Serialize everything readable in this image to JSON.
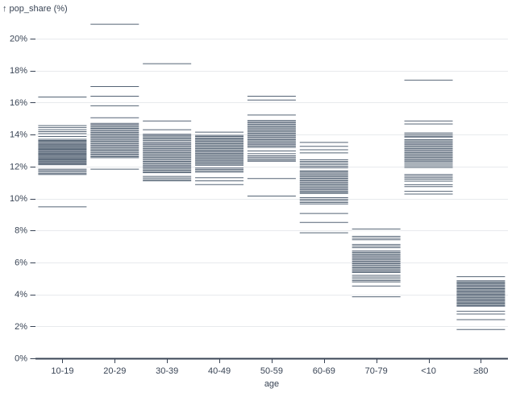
{
  "chart": {
    "ylabel_display": "↑ pop_share (%)",
    "xlabel": "age"
  },
  "colors": {
    "tick_color": "#142840",
    "tick_opacity": 0.72,
    "grid_color": "#e8eaed",
    "axis_color": "#394455",
    "text_color": "#394455",
    "background": "#ffffff"
  },
  "chart_data": {
    "type": "scatter",
    "mark": "tick",
    "title": "",
    "xlabel": "age",
    "ylabel": "pop_share (%)",
    "ylim": [
      0,
      21
    ],
    "yticks": [
      0,
      2,
      4,
      6,
      8,
      10,
      12,
      14,
      16,
      18,
      20
    ],
    "ytick_labels": [
      "0%",
      "2%",
      "4%",
      "6%",
      "8%",
      "10%",
      "12%",
      "14%",
      "16%",
      "18%",
      "20%"
    ],
    "grid": true,
    "legend": "none",
    "categories": [
      "10-19",
      "20-29",
      "30-39",
      "40-49",
      "50-59",
      "60-69",
      "70-79",
      "<10",
      "≥80"
    ],
    "series": [
      {
        "category": "10-19",
        "values": [
          16.35,
          14.56,
          14.44,
          14.3,
          14.18,
          14.06,
          13.88,
          13.7,
          13.63,
          13.57,
          13.5,
          13.44,
          13.37,
          13.31,
          13.25,
          13.19,
          13.13,
          13.07,
          13.01,
          12.95,
          12.89,
          12.83,
          12.77,
          12.71,
          12.65,
          12.59,
          12.53,
          12.47,
          12.41,
          12.35,
          12.29,
          12.23,
          12.17,
          12.11,
          11.83,
          11.75,
          11.66,
          11.57,
          11.5,
          9.48
        ]
      },
      {
        "category": "20-29",
        "values": [
          20.9,
          17.0,
          16.4,
          15.8,
          15.05,
          14.7,
          14.62,
          14.54,
          14.46,
          14.38,
          14.3,
          14.22,
          14.14,
          14.06,
          13.98,
          13.9,
          13.82,
          13.74,
          13.66,
          13.58,
          13.5,
          13.42,
          13.34,
          13.26,
          13.18,
          13.1,
          13.02,
          12.94,
          12.86,
          12.78,
          12.7,
          12.62,
          12.55,
          11.83
        ]
      },
      {
        "category": "30-39",
        "values": [
          18.43,
          14.85,
          14.3,
          14.02,
          13.94,
          13.86,
          13.78,
          13.7,
          13.62,
          13.52,
          13.44,
          13.36,
          13.28,
          13.2,
          13.12,
          13.04,
          12.96,
          12.88,
          12.8,
          12.72,
          12.64,
          12.56,
          12.48,
          12.4,
          12.32,
          12.24,
          12.16,
          12.08,
          12.0,
          11.92,
          11.84,
          11.76,
          11.68,
          11.61,
          11.38,
          11.28,
          11.18,
          11.1
        ]
      },
      {
        "category": "40-49",
        "values": [
          14.15,
          13.95,
          13.88,
          13.8,
          13.73,
          13.65,
          13.58,
          13.5,
          13.43,
          13.35,
          13.28,
          13.2,
          13.13,
          13.05,
          12.98,
          12.9,
          12.83,
          12.75,
          12.68,
          12.6,
          12.53,
          12.45,
          12.38,
          12.3,
          12.23,
          12.15,
          12.08,
          11.9,
          11.82,
          11.73,
          11.65,
          11.3,
          11.1,
          10.87
        ]
      },
      {
        "category": "50-59",
        "values": [
          16.4,
          16.16,
          15.22,
          14.88,
          14.8,
          14.72,
          14.64,
          14.56,
          14.48,
          14.4,
          14.32,
          14.24,
          14.16,
          14.08,
          14.0,
          13.92,
          13.84,
          13.76,
          13.68,
          13.6,
          13.52,
          13.44,
          13.36,
          13.28,
          13.2,
          12.97,
          12.8,
          12.67,
          12.58,
          12.49,
          12.4,
          12.33,
          11.25,
          10.15
        ]
      },
      {
        "category": "60-69",
        "values": [
          13.51,
          13.26,
          13.05,
          12.85,
          12.42,
          12.32,
          12.22,
          12.12,
          12.02,
          11.92,
          11.74,
          11.66,
          11.58,
          11.5,
          11.42,
          11.34,
          11.26,
          11.18,
          11.1,
          11.02,
          10.94,
          10.86,
          10.78,
          10.7,
          10.62,
          10.54,
          10.46,
          10.38,
          10.32,
          10.05,
          9.95,
          9.85,
          9.75,
          9.66,
          9.06,
          8.5,
          7.85
        ]
      },
      {
        "category": "70-79",
        "values": [
          8.09,
          7.63,
          7.52,
          7.42,
          7.12,
          7.02,
          6.92,
          6.71,
          6.63,
          6.55,
          6.47,
          6.39,
          6.31,
          6.23,
          6.15,
          6.07,
          5.99,
          5.91,
          5.83,
          5.75,
          5.67,
          5.59,
          5.51,
          5.43,
          5.37,
          5.19,
          5.08,
          4.97,
          4.86,
          4.78,
          4.52,
          3.85
        ]
      },
      {
        "category": "<10",
        "values": [
          17.4,
          14.85,
          14.66,
          14.1,
          14.0,
          13.9,
          13.84,
          13.68,
          13.6,
          13.52,
          13.44,
          13.36,
          13.28,
          13.2,
          13.12,
          13.04,
          12.96,
          12.88,
          12.8,
          12.72,
          12.64,
          12.56,
          12.48,
          12.4,
          12.33,
          12.24,
          12.14,
          12.04,
          11.94,
          11.5,
          11.4,
          11.3,
          11.2,
          11.08,
          10.86,
          10.74,
          10.45,
          10.28
        ]
      },
      {
        "category": "≥80",
        "values": [
          5.11,
          4.85,
          4.78,
          4.71,
          4.64,
          4.57,
          4.5,
          4.43,
          4.36,
          4.29,
          4.22,
          4.15,
          4.08,
          4.01,
          3.94,
          3.87,
          3.8,
          3.73,
          3.66,
          3.59,
          3.52,
          3.45,
          3.38,
          3.31,
          3.26,
          2.94,
          2.77,
          2.42,
          1.8
        ]
      }
    ]
  }
}
